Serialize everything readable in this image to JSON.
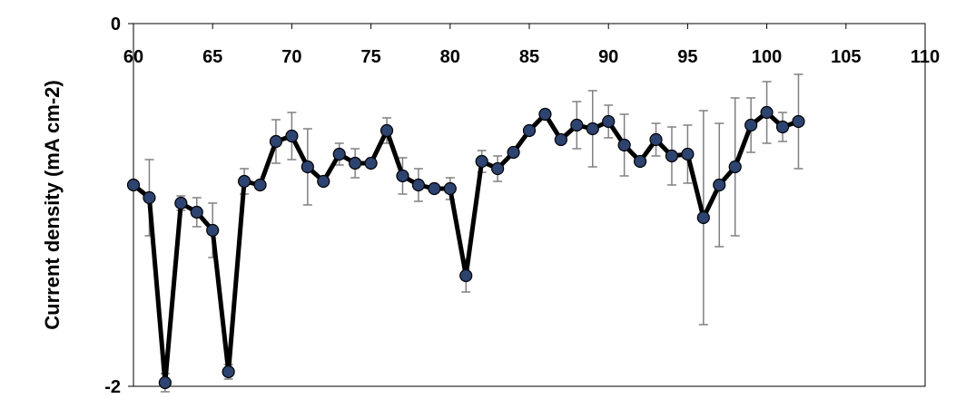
{
  "chart_data": {
    "type": "line",
    "title": "",
    "xlabel": "",
    "ylabel": "Current density (mA cm-2)",
    "xlim": [
      60,
      110
    ],
    "ylim": [
      -2,
      0
    ],
    "x_ticks": [
      60,
      65,
      70,
      75,
      80,
      85,
      90,
      95,
      100,
      105,
      110
    ],
    "y_ticks": [
      0,
      -2
    ],
    "x_tick_labels": [
      "60",
      "65",
      "70",
      "75",
      "80",
      "85",
      "90",
      "95",
      "100",
      "105",
      "110"
    ],
    "y_tick_labels": [
      "0",
      "-2"
    ],
    "grid": false,
    "legend": "none",
    "colors": {
      "line": "#000000",
      "marker_fill": "#2d4370",
      "marker_edge": "#000000",
      "error_bar": "#808080"
    },
    "series": [
      {
        "x": [
          60,
          61,
          62,
          63,
          64,
          65,
          66,
          67,
          68,
          69,
          70,
          71,
          72,
          73,
          74,
          75,
          76,
          77,
          78,
          79,
          80,
          81,
          82,
          83,
          84,
          85,
          86,
          87,
          88,
          89,
          90,
          91,
          92,
          93,
          94,
          95,
          96,
          97,
          98,
          99,
          100,
          101,
          102
        ],
        "y": [
          -0.89,
          -0.96,
          -1.98,
          -0.99,
          -1.04,
          -1.14,
          -1.92,
          -0.87,
          -0.89,
          -0.65,
          -0.62,
          -0.79,
          -0.87,
          -0.72,
          -0.77,
          -0.77,
          -0.59,
          -0.84,
          -0.89,
          -0.91,
          -0.91,
          -1.39,
          -0.76,
          -0.8,
          -0.71,
          -0.59,
          -0.5,
          -0.64,
          -0.56,
          -0.58,
          -0.54,
          -0.67,
          -0.76,
          -0.64,
          -0.73,
          -0.72,
          -1.07,
          -0.89,
          -0.79,
          -0.56,
          -0.49,
          -0.57,
          -0.54
        ],
        "error": [
          0,
          0.21,
          0.05,
          0.04,
          0.08,
          0.15,
          0.04,
          0.07,
          0,
          0.12,
          0.13,
          0.21,
          0,
          0.06,
          0.08,
          0,
          0.07,
          0.1,
          0.09,
          0,
          0.06,
          0.09,
          0.06,
          0.07,
          0,
          0,
          0,
          0,
          0.13,
          0.21,
          0.09,
          0.17,
          0,
          0.09,
          0.16,
          0.16,
          0.59,
          0.34,
          0.38,
          0.15,
          0.17,
          0.08,
          0.26
        ]
      }
    ]
  }
}
